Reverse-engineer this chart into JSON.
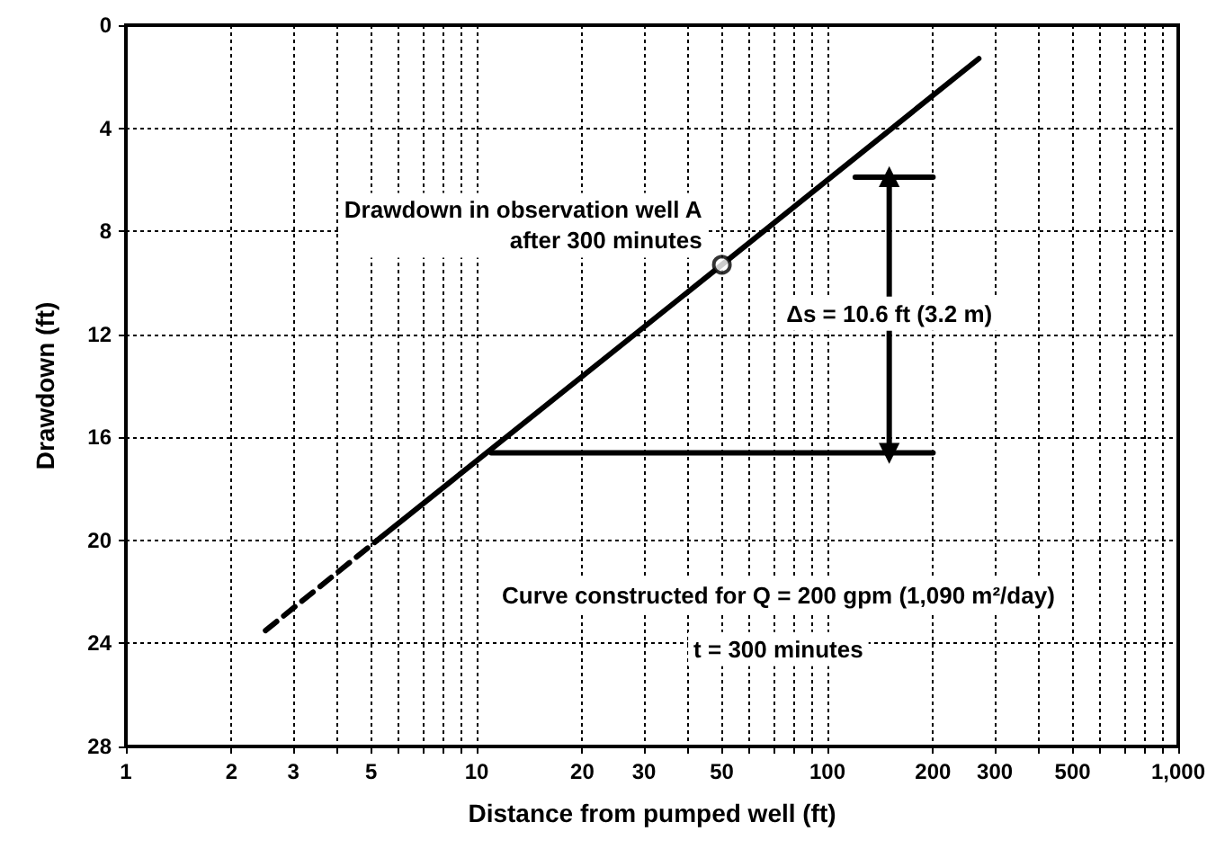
{
  "chart_data": {
    "type": "line",
    "xlabel": "Distance from pumped well (ft)",
    "ylabel": "Drawdown (ft)",
    "log": "x",
    "grid": true,
    "xlim": [
      1,
      1000
    ],
    "ylim": [
      28,
      0
    ],
    "xticks": [
      1,
      2,
      3,
      {
        "value": 4,
        "label": null
      },
      5,
      {
        "value": 6,
        "label": null
      },
      {
        "value": 7,
        "label": null
      },
      {
        "value": 8,
        "label": null
      },
      {
        "value": 9,
        "label": null
      },
      10,
      20,
      30,
      {
        "value": 40,
        "label": null
      },
      50,
      {
        "value": 60,
        "label": null
      },
      {
        "value": 70,
        "label": null
      },
      {
        "value": 80,
        "label": null
      },
      {
        "value": 90,
        "label": null
      },
      100,
      200,
      300,
      {
        "value": 400,
        "label": null
      },
      500,
      {
        "value": 600,
        "label": null
      },
      {
        "value": 700,
        "label": null
      },
      {
        "value": 800,
        "label": null
      },
      {
        "value": 900,
        "label": null
      },
      {
        "value": 1000,
        "label": "1,000"
      }
    ],
    "yticks": [
      0,
      4,
      8,
      12,
      16,
      20,
      24,
      28
    ],
    "series": [
      {
        "color": "#000000",
        "x": [
          2.5,
          5.2
        ],
        "values": [
          23.5,
          20
        ],
        "line_style": "dashed",
        "marker": "none"
      },
      {
        "color": "#000000",
        "x": [
          5.2,
          50,
          270
        ],
        "values": [
          20,
          9.3,
          1.3
        ],
        "line_style": "solid",
        "marker": "none"
      },
      {
        "type": "scatter",
        "color": "#ffffff",
        "x": [
          50
        ],
        "values": [
          9.3
        ],
        "marker": "circle"
      },
      {
        "color": "#000000",
        "x": [
          120,
          200
        ],
        "values": [
          5.9,
          5.9
        ],
        "line_style": "solid",
        "marker": "none"
      },
      {
        "color": "#000000",
        "x": [
          11,
          200
        ],
        "values": [
          16.6,
          16.6
        ],
        "line_style": "solid",
        "marker": "none"
      },
      {
        "color": "#000000",
        "x": [
          150,
          150
        ],
        "values": [
          5.9,
          16.6
        ],
        "line_style": "solid",
        "marker": "triangle"
      }
    ],
    "annotations": [
      {
        "text": "Drawdown in observation well A\nafter 300 minutes",
        "x": 50,
        "y": 9.3
      },
      {
        "text": "Δs = 10.6 ft (3.2 m)",
        "x": 150,
        "y": 11.2
      },
      "Curve constructed for Q = 200 gpm (1,090 m²/day)",
      "t = 300 minutes"
    ]
  }
}
